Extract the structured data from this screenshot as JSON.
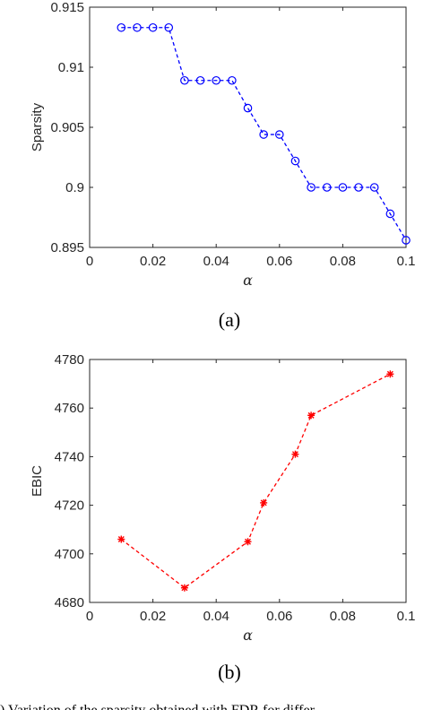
{
  "chart_data": [
    {
      "type": "line",
      "panel_label": "(a)",
      "xlabel": "α",
      "ylabel": "Sparsity",
      "xlim": [
        0,
        0.1
      ],
      "ylim": [
        0.895,
        0.915
      ],
      "xticks": [
        "0",
        "0.02",
        "0.04",
        "0.06",
        "0.08",
        "0.1"
      ],
      "yticks": [
        "0.895",
        "0.9",
        "0.905",
        "0.91",
        "0.915"
      ],
      "grid": false,
      "series": [
        {
          "marker": "circle",
          "line_style": "dashed",
          "color": "#0000ff",
          "x": [
            0.01,
            0.015,
            0.02,
            0.025,
            0.03,
            0.035,
            0.04,
            0.045,
            0.05,
            0.055,
            0.06,
            0.065,
            0.07,
            0.075,
            0.08,
            0.085,
            0.09,
            0.095,
            0.1
          ],
          "values": [
            0.9133,
            0.9133,
            0.9133,
            0.9133,
            0.9089,
            0.9089,
            0.9089,
            0.9089,
            0.9066,
            0.9044,
            0.9044,
            0.9022,
            0.9,
            0.9,
            0.9,
            0.9,
            0.9,
            0.8978,
            0.8956
          ]
        }
      ]
    },
    {
      "type": "line",
      "panel_label": "(b)",
      "xlabel": "α",
      "ylabel": "EBIC",
      "xlim": [
        0,
        0.1
      ],
      "ylim": [
        4680,
        4780
      ],
      "xticks": [
        "0",
        "0.02",
        "0.04",
        "0.06",
        "0.08",
        "0.1"
      ],
      "yticks": [
        "4680",
        "4700",
        "4720",
        "4740",
        "4760",
        "4780"
      ],
      "grid": false,
      "series": [
        {
          "marker": "asterisk",
          "line_style": "dashed",
          "color": "#ff0000",
          "x": [
            0.01,
            0.03,
            0.05,
            0.055,
            0.065,
            0.07,
            0.095
          ],
          "values": [
            4706,
            4686,
            4705,
            4721,
            4741,
            4757,
            4774
          ]
        }
      ]
    }
  ],
  "caption_fragment": ") Variation of the sparsity obtained with FDR for differ"
}
